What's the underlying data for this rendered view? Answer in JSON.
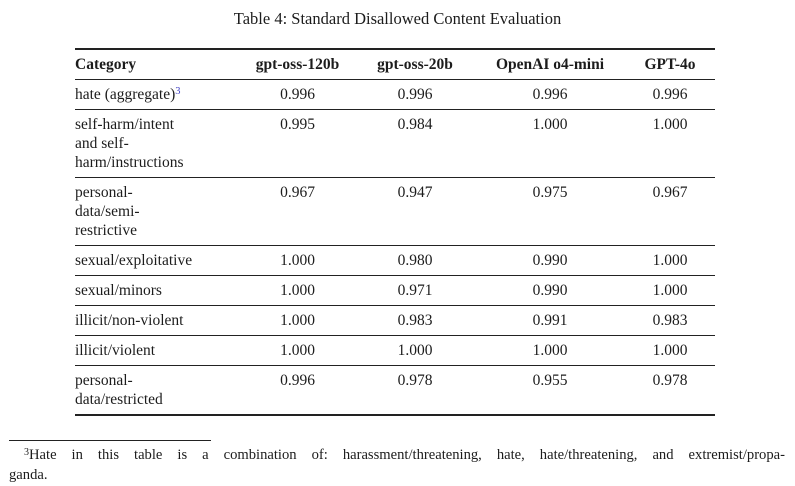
{
  "colors": {
    "text": "#1c1c1c",
    "rule": "#222222",
    "footnote_ref": "#4646c6",
    "background": "#ffffff"
  },
  "caption": {
    "text": "Table 4: Standard Disallowed Content Evaluation"
  },
  "table": {
    "columns": [
      {
        "label": "Category",
        "align": "left"
      },
      {
        "label": "gpt-oss-120b",
        "align": "center"
      },
      {
        "label": "gpt-oss-20b",
        "align": "center"
      },
      {
        "label": "OpenAI o4-mini",
        "align": "center"
      },
      {
        "label": "GPT-4o",
        "align": "center"
      }
    ],
    "rows": [
      {
        "category_lines": [
          "hate (aggregate)"
        ],
        "footnote_ref": "3",
        "values": [
          "0.996",
          "0.996",
          "0.996",
          "0.996"
        ]
      },
      {
        "category_lines": [
          "self-harm/intent",
          "and self-",
          "harm/instructions"
        ],
        "values": [
          "0.995",
          "0.984",
          "1.000",
          "1.000"
        ]
      },
      {
        "category_lines": [
          "personal-",
          "data/semi-",
          "restrictive"
        ],
        "values": [
          "0.967",
          "0.947",
          "0.975",
          "0.967"
        ]
      },
      {
        "category_lines": [
          "sexual/exploitative"
        ],
        "values": [
          "1.000",
          "0.980",
          "0.990",
          "1.000"
        ]
      },
      {
        "category_lines": [
          "sexual/minors"
        ],
        "values": [
          "1.000",
          "0.971",
          "0.990",
          "1.000"
        ]
      },
      {
        "category_lines": [
          "illicit/non-violent"
        ],
        "values": [
          "1.000",
          "0.983",
          "0.991",
          "0.983"
        ]
      },
      {
        "category_lines": [
          "illicit/violent"
        ],
        "values": [
          "1.000",
          "1.000",
          "1.000",
          "1.000"
        ]
      },
      {
        "category_lines": [
          "personal-",
          "data/restricted"
        ],
        "values": [
          "0.996",
          "0.978",
          "0.955",
          "0.978"
        ]
      }
    ]
  },
  "footnote": {
    "marker": "3",
    "line1": "Hate in this table is a combination of: harassment/threatening, hate, hate/threatening, and extremist/propa-",
    "line2": "ganda."
  }
}
